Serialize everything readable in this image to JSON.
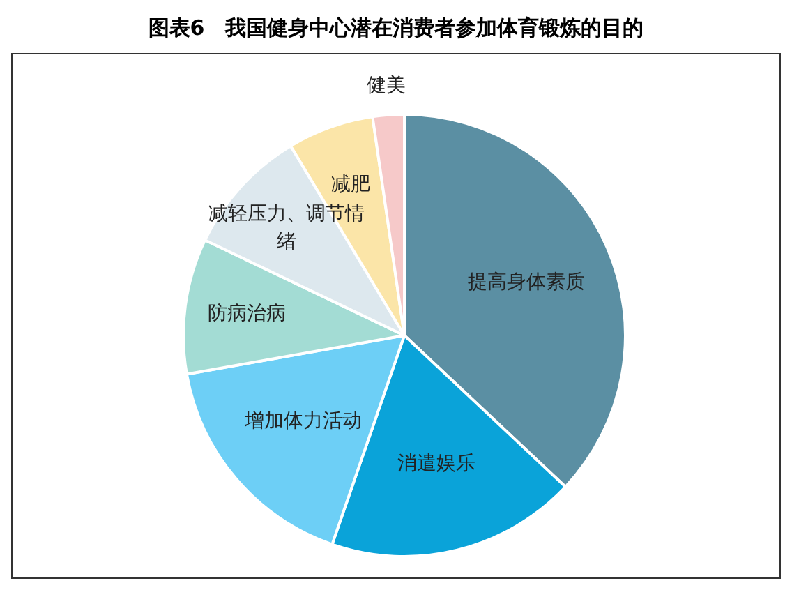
{
  "chart_data": {
    "type": "pie",
    "title": "图表6　我国健身中心潜在消费者参加体育锻炼的目的",
    "categories": [
      "提高身体素质",
      "消遣娱乐",
      "增加体力活动",
      "防病治病",
      "减轻压力、调节情绪",
      "减肥",
      "健美"
    ],
    "values": [
      37,
      18.3,
      16.9,
      9.9,
      9.3,
      6.3,
      2.3
    ],
    "colors": [
      "#5b8fa3",
      "#0aa3d9",
      "#6dcff6",
      "#a3dcd4",
      "#dde8ee",
      "#fbe5a8",
      "#f6c9c9"
    ],
    "legend": false
  }
}
